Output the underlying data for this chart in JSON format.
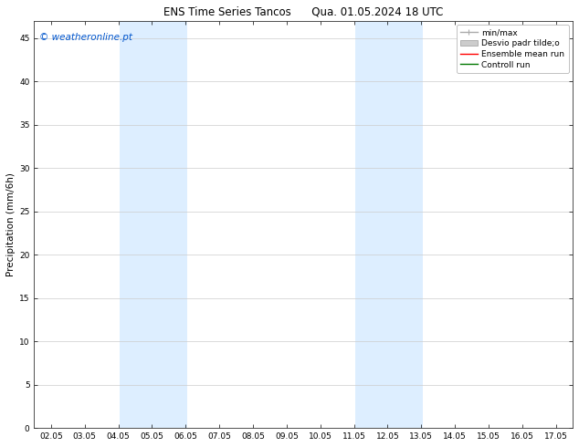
{
  "title_left": "ENS Time Series Tancos",
  "title_right": "Qua. 01.05.2024 18 UTC",
  "ylabel": "Precipitation (mm/6h)",
  "watermark": "© weatheronline.pt",
  "watermark_color": "#0055cc",
  "xlim_left": 1.5,
  "xlim_right": 17.5,
  "ylim_bottom": 0,
  "ylim_top": 47,
  "yticks": [
    0,
    5,
    10,
    15,
    20,
    25,
    30,
    35,
    40,
    45
  ],
  "xtick_labels": [
    "02.05",
    "03.05",
    "04.05",
    "05.05",
    "06.05",
    "07.05",
    "08.05",
    "09.05",
    "10.05",
    "11.05",
    "12.05",
    "13.05",
    "14.05",
    "15.05",
    "16.05",
    "17.05"
  ],
  "xtick_positions": [
    2,
    3,
    4,
    5,
    6,
    7,
    8,
    9,
    10,
    11,
    12,
    13,
    14,
    15,
    16,
    17
  ],
  "shaded_regions": [
    {
      "xmin": 4.05,
      "xmax": 6.05,
      "color": "#ddeeff"
    },
    {
      "xmin": 11.05,
      "xmax": 13.05,
      "color": "#ddeeff"
    }
  ],
  "legend_items": [
    {
      "label": "min/max",
      "color": "#aaaaaa",
      "linestyle": "-",
      "linewidth": 1.0
    },
    {
      "label": "Desvio padr tilde;o",
      "color": "#cccccc",
      "linestyle": "-",
      "linewidth": 5
    },
    {
      "label": "Ensemble mean run",
      "color": "#ff0000",
      "linestyle": "-",
      "linewidth": 1.0
    },
    {
      "label": "Controll run",
      "color": "#007700",
      "linestyle": "-",
      "linewidth": 1.0
    }
  ],
  "background_color": "#ffffff",
  "plot_bg_color": "#ffffff",
  "grid_color": "#cccccc",
  "tick_fontsize": 6.5,
  "label_fontsize": 7.5,
  "title_fontsize": 8.5,
  "legend_fontsize": 6.5,
  "watermark_fontsize": 7.5
}
